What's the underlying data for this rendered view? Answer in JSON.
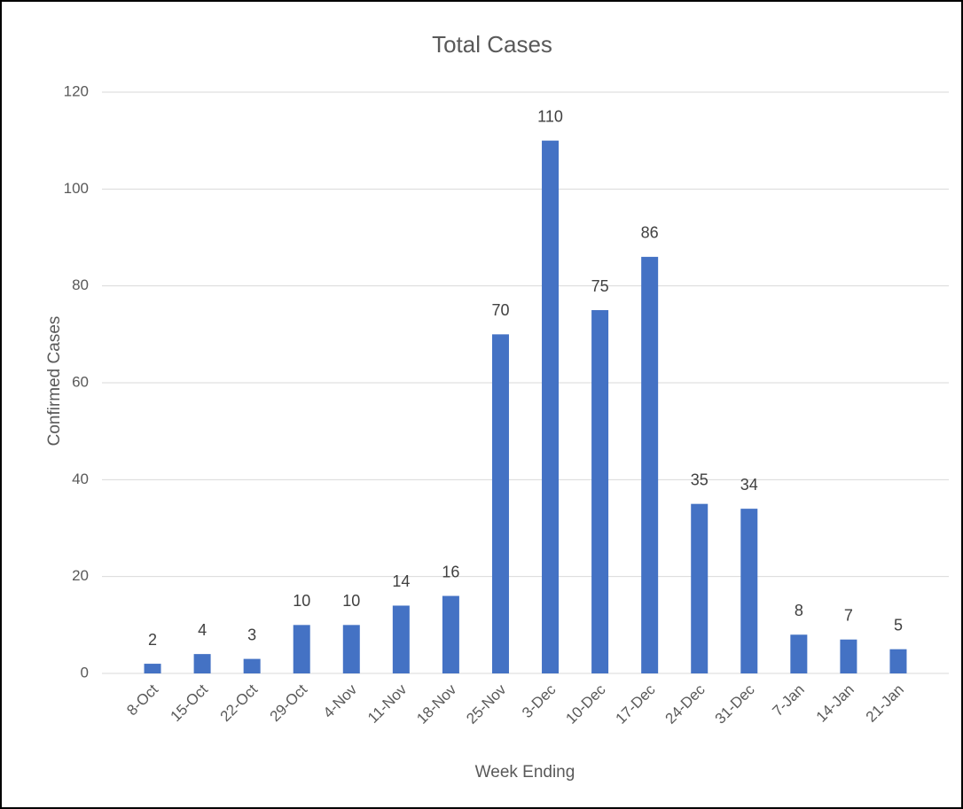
{
  "chart_data": {
    "type": "bar",
    "title": "Total Cases",
    "x_label": "Week Ending",
    "y_label": "Confirmed Cases",
    "categories": [
      "8-Oct",
      "15-Oct",
      "22-Oct",
      "29-Oct",
      "4-Nov",
      "11-Nov",
      "18-Nov",
      "25-Nov",
      "3-Dec",
      "10-Dec",
      "17-Dec",
      "24-Dec",
      "31-Dec",
      "7-Jan",
      "14-Jan",
      "21-Jan"
    ],
    "values": [
      2,
      4,
      3,
      10,
      10,
      14,
      16,
      70,
      110,
      75,
      86,
      35,
      34,
      8,
      7,
      5
    ],
    "color": "#4472c4",
    "ylim": [
      0,
      120
    ],
    "yticks": [
      0,
      20,
      40,
      60,
      80,
      100,
      120
    ],
    "grid": true
  }
}
